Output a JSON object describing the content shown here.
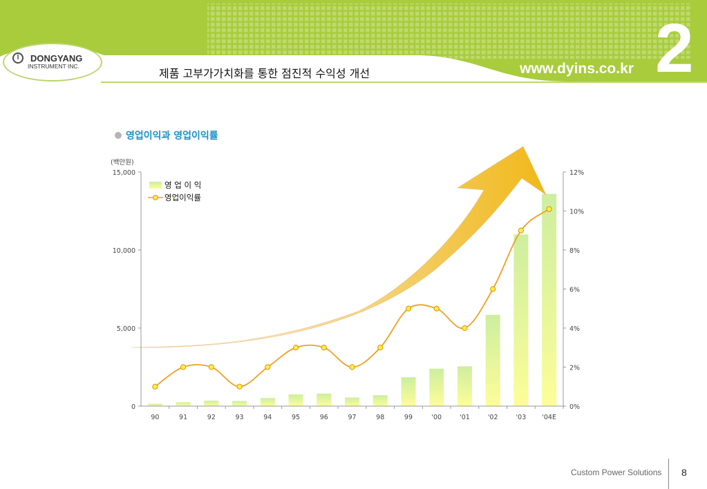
{
  "header": {
    "company_name": "DONGYANG",
    "company_sub": "INSTRUMENT INC.",
    "slide_title": "제품 고부가가치화를 통한 점진적 수익성 개선",
    "website": "www.dyins.co.kr",
    "section_number": "2"
  },
  "section_title": "영업이익과 영업이익률",
  "footer": {
    "tagline": "Custom Power Solutions",
    "page_number": "8"
  },
  "colors": {
    "header_green": "#a8cc3c",
    "accent_blue": "#1a8fc7",
    "line_orange": "#f0a020",
    "bar_green": "#d2f0a4",
    "bar_yellow": "#fdfd9a",
    "arrow_gold": "#f0c02a"
  },
  "chart_data": {
    "type": "bar",
    "categories": [
      "90",
      "91",
      "92",
      "93",
      "94",
      "95",
      "96",
      "97",
      "98",
      "99",
      "'00",
      "'01",
      "'02",
      "'03",
      "'04E"
    ],
    "y_unit_label": "(백만원)",
    "ylim": [
      0,
      15000
    ],
    "y_ticks": [
      "0",
      "5,000",
      "10,000",
      "15,000"
    ],
    "y2lim": [
      0,
      12
    ],
    "y2_ticks": [
      "0%",
      "2%",
      "4%",
      "6%",
      "8%",
      "10%",
      "12%"
    ],
    "legend_position": "top-left",
    "series": [
      {
        "name": "영 업 이 익",
        "type": "bar",
        "values": [
          150,
          250,
          350,
          330,
          520,
          750,
          800,
          550,
          700,
          1850,
          2400,
          2550,
          5850,
          11000,
          13600
        ]
      },
      {
        "name": "영업이익률",
        "type": "line",
        "axis": "right",
        "values": [
          1.0,
          2.0,
          2.0,
          1.0,
          2.0,
          3.0,
          3.0,
          2.0,
          3.0,
          5.0,
          5.0,
          4.0,
          6.0,
          9.0,
          10.1
        ]
      }
    ]
  }
}
